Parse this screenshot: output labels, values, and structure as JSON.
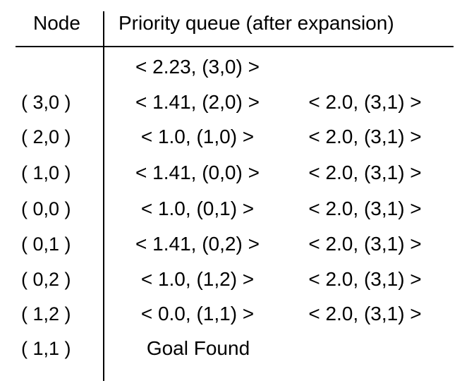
{
  "headers": {
    "node": "Node",
    "queue": "Priority queue (after expansion)"
  },
  "rows": [
    {
      "node": "",
      "q1": "< 2.23, (3,0) >",
      "q2": ""
    },
    {
      "node": "( 3,0 )",
      "q1": "< 1.41, (2,0) >",
      "q2": "< 2.0, (3,1) >"
    },
    {
      "node": "( 2,0 )",
      "q1": "< 1.0, (1,0) >",
      "q2": "< 2.0, (3,1) >"
    },
    {
      "node": "( 1,0 )",
      "q1": "< 1.41, (0,0) >",
      "q2": "< 2.0, (3,1) >"
    },
    {
      "node": "( 0,0 )",
      "q1": "< 1.0, (0,1) >",
      "q2": "< 2.0, (3,1) >"
    },
    {
      "node": "( 0,1 )",
      "q1": "< 1.41, (0,2) >",
      "q2": "< 2.0, (3,1) >"
    },
    {
      "node": "( 0,2 )",
      "q1": "< 1.0, (1,2) >",
      "q2": "< 2.0, (3,1) >"
    },
    {
      "node": "( 1,2 )",
      "q1": "< 0.0, (1,1) >",
      "q2": "< 2.0, (3,1) >"
    },
    {
      "node": "( 1,1 )",
      "q1": "Goal Found",
      "q2": ""
    }
  ]
}
